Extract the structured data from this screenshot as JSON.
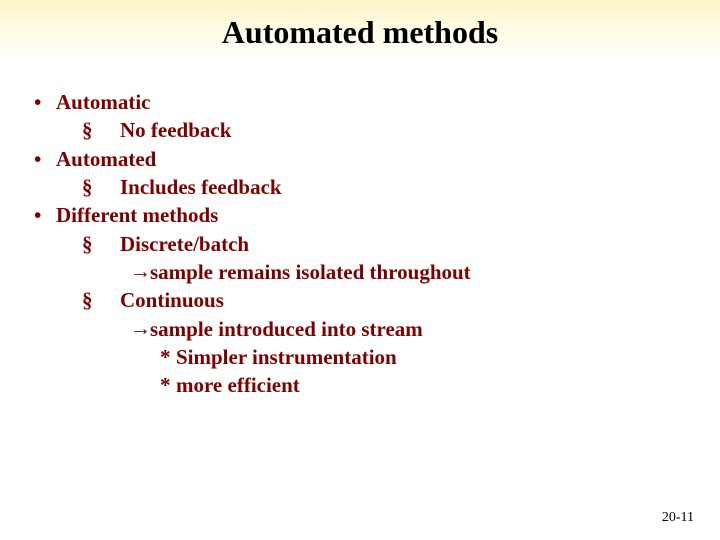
{
  "title": "Automated methods",
  "title_color": "#000000",
  "title_fontsize": 32,
  "title_band_gradient": [
    "#fdf3c7",
    "#fefbe0",
    "#ffffff"
  ],
  "body_color": "#800000",
  "body_fontsize": 21,
  "background_color": "#ffffff",
  "bullets": {
    "b0": {
      "level": 1,
      "text": "Automatic"
    },
    "b1": {
      "level": 2,
      "text": "No feedback"
    },
    "b2": {
      "level": 1,
      "text": "Automated"
    },
    "b3": {
      "level": 2,
      "text": "Includes feedback"
    },
    "b4": {
      "level": 1,
      "text": "Different methods"
    },
    "b5": {
      "level": 2,
      "text": "Discrete/batch"
    },
    "b6": {
      "level": 3,
      "text": "sample remains isolated throughout"
    },
    "b7": {
      "level": 2,
      "text": "Continuous"
    },
    "b8": {
      "level": 3,
      "text": "sample introduced into stream"
    },
    "b9": {
      "level": 4,
      "text": "Simpler instrumentation"
    },
    "b10": {
      "level": 4,
      "text": "more efficient"
    }
  },
  "page_number": "20-11"
}
